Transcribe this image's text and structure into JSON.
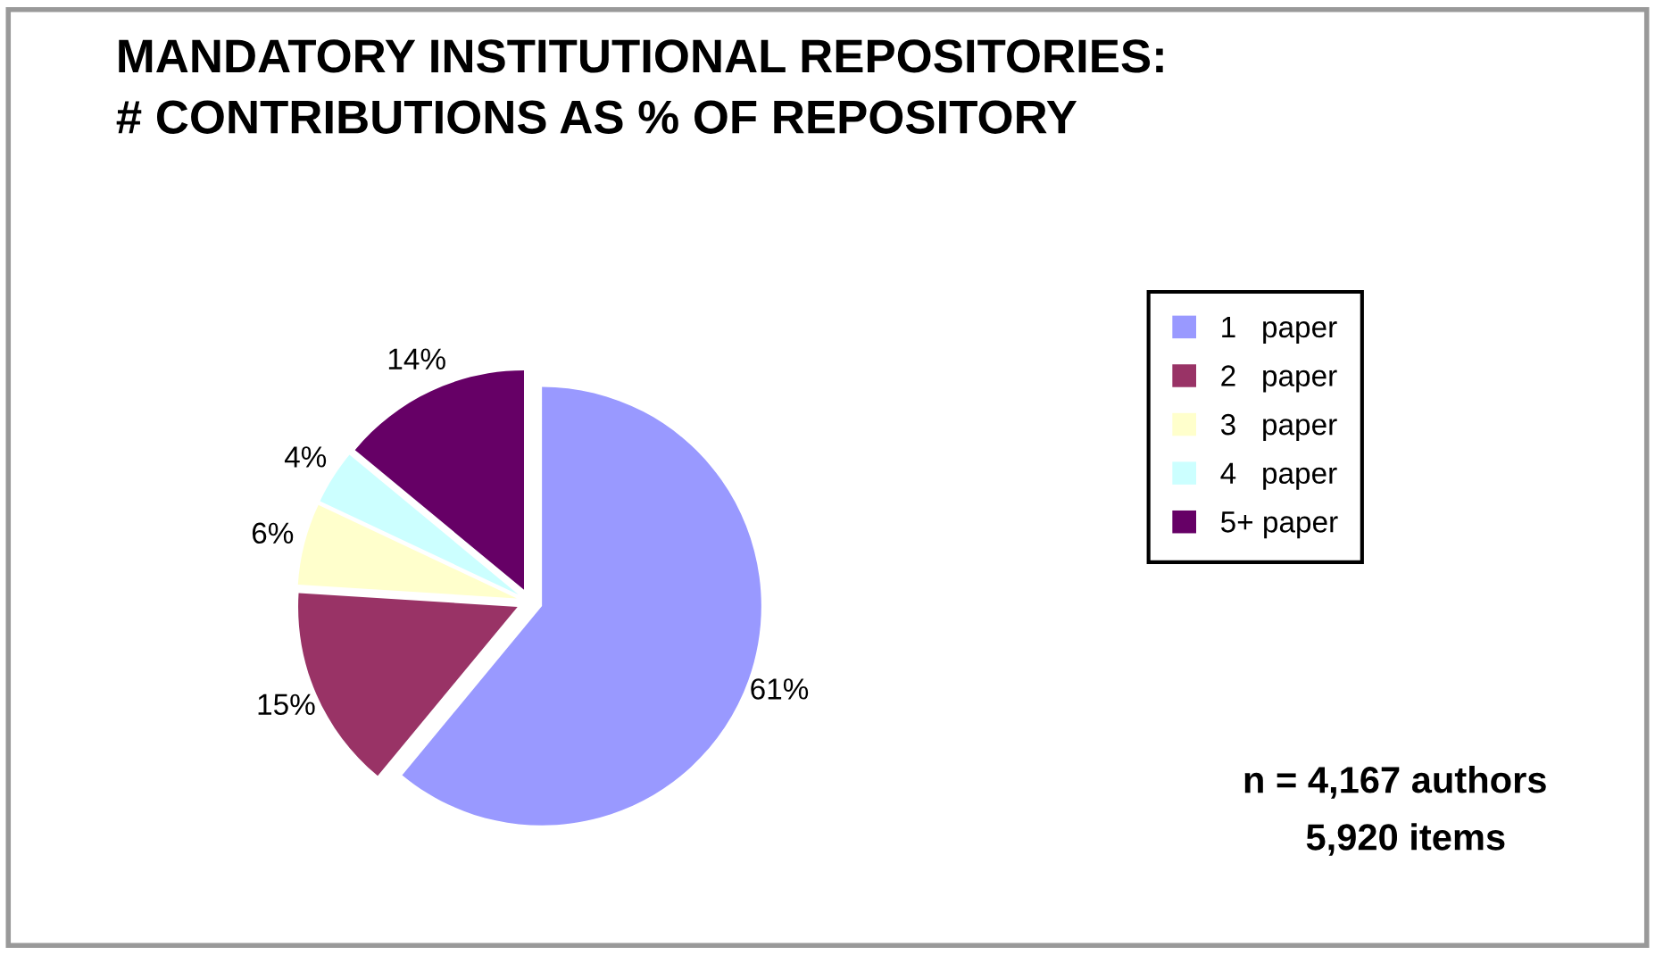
{
  "chart_data": {
    "type": "pie",
    "title": "MANDATORY INSTITUTIONAL REPOSITORIES:\n# CONTRIBUTIONS AS % OF REPOSITORY",
    "categories": [
      "1   paper",
      "2   paper",
      "3   paper",
      "4   paper",
      "5+ paper"
    ],
    "values": [
      61,
      15,
      6,
      4,
      14
    ],
    "colors": [
      "#9999ff",
      "#993366",
      "#ffffcc",
      "#ccffff",
      "#660066"
    ],
    "value_labels": [
      "61%",
      "15%",
      "6%",
      "4%",
      "14%"
    ],
    "legend": "right",
    "annotations": [
      "n = 4,167 authors",
      "5,920 items"
    ]
  }
}
